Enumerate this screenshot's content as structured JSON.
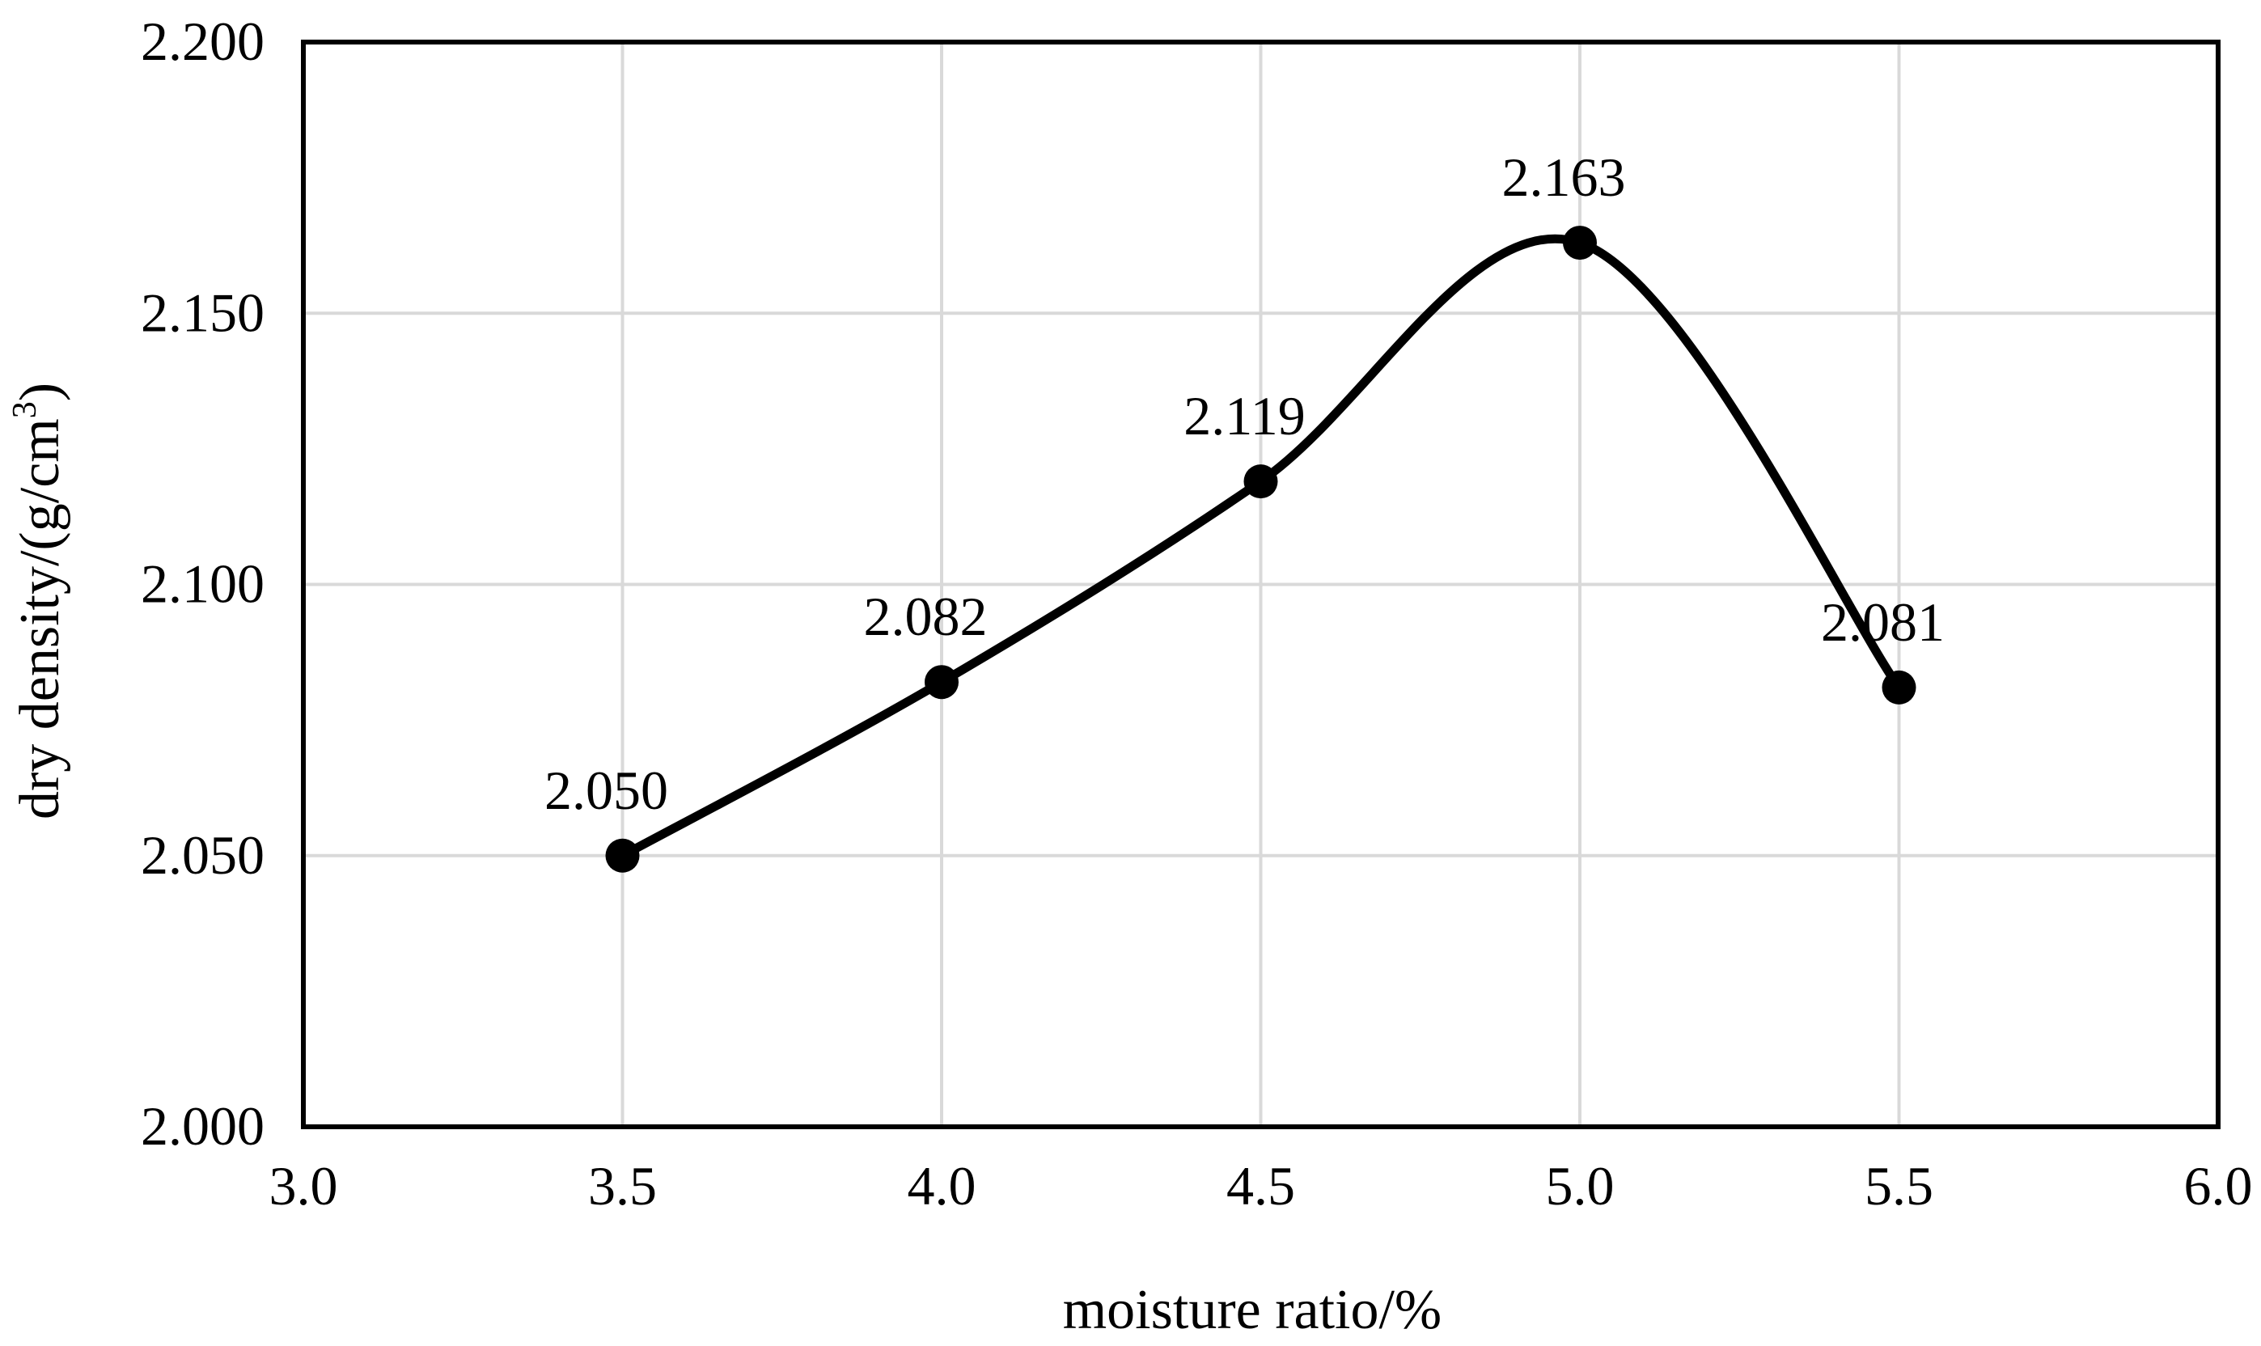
{
  "chart_data": {
    "type": "line",
    "title": "",
    "xlabel": "moisture ratio/%",
    "ylabel": "dry density/(g/cm",
    "ylabel_superscript": "3",
    "ylabel_suffix": ")",
    "xlim": [
      3.0,
      6.0
    ],
    "ylim": [
      2.0,
      2.2
    ],
    "x_ticks": [
      3.0,
      3.5,
      4.0,
      4.5,
      5.0,
      5.5,
      6.0
    ],
    "x_tick_labels": [
      "3.0",
      "3.5",
      "4.0",
      "4.5",
      "5.0",
      "5.5",
      "6.0"
    ],
    "y_ticks": [
      2.0,
      2.05,
      2.1,
      2.15,
      2.2
    ],
    "y_tick_labels": [
      "2.000",
      "2.050",
      "2.100",
      "2.150",
      "2.200"
    ],
    "grid": true,
    "smooth": true,
    "series": [
      {
        "name": "dry density",
        "color": "#000000",
        "marker": "circle",
        "x": [
          3.5,
          4.0,
          4.5,
          5.0,
          5.5
        ],
        "y": [
          2.05,
          2.082,
          2.119,
          2.163,
          2.081
        ],
        "data_labels": [
          "2.050",
          "2.082",
          "2.119",
          "2.163",
          "2.081"
        ]
      }
    ]
  },
  "colors": {
    "grid": "#d9d9d9",
    "axis": "#000000",
    "line": "#000000"
  }
}
